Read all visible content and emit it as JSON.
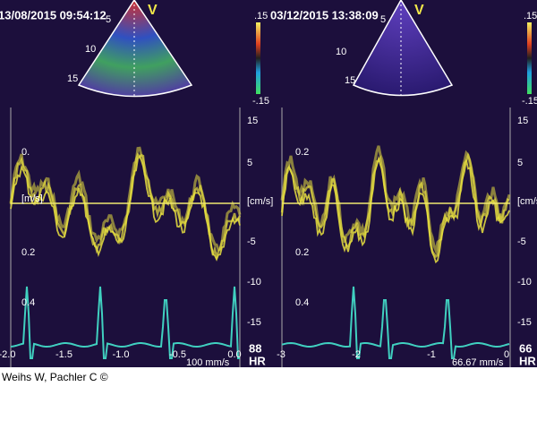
{
  "footer": "Weihs W, Pachler C ©",
  "panels": [
    {
      "timestamp": "13/08/2015 09:54:12",
      "view": "V",
      "depth_labels": [
        "5",
        "10",
        "15"
      ],
      "color_bar": {
        "top": ".15",
        "bottom": "-.15"
      },
      "velocity_scale_right": [
        "15",
        "5",
        "[cm/s]",
        "-5",
        "-10",
        "-15"
      ],
      "velocity_scale_left": [
        "0.",
        "[m/s]",
        "0.2",
        "0.4"
      ],
      "time_labels": [
        "-2.0",
        "-1.5",
        "-1.0",
        "-0.5",
        "0.0"
      ],
      "heart_rate": "88",
      "hr_label": "HR",
      "sweep_speed": "100 mm/s"
    },
    {
      "timestamp": "03/12/2015 13:38:09",
      "view": "V",
      "depth_labels": [
        "5",
        "10",
        "15"
      ],
      "color_bar": {
        "top": ".15",
        "bottom": "-.15"
      },
      "velocity_scale_right": [
        "15",
        "5",
        "[cm/s]",
        "-5",
        "-10",
        "-15"
      ],
      "velocity_scale_left": [
        "0.2",
        "0.2",
        "0.4"
      ],
      "time_labels": [
        "-3",
        "-2",
        "-1",
        "0"
      ],
      "heart_rate": "66",
      "hr_label": "HR",
      "sweep_speed": "66.67 mm/s"
    }
  ]
}
